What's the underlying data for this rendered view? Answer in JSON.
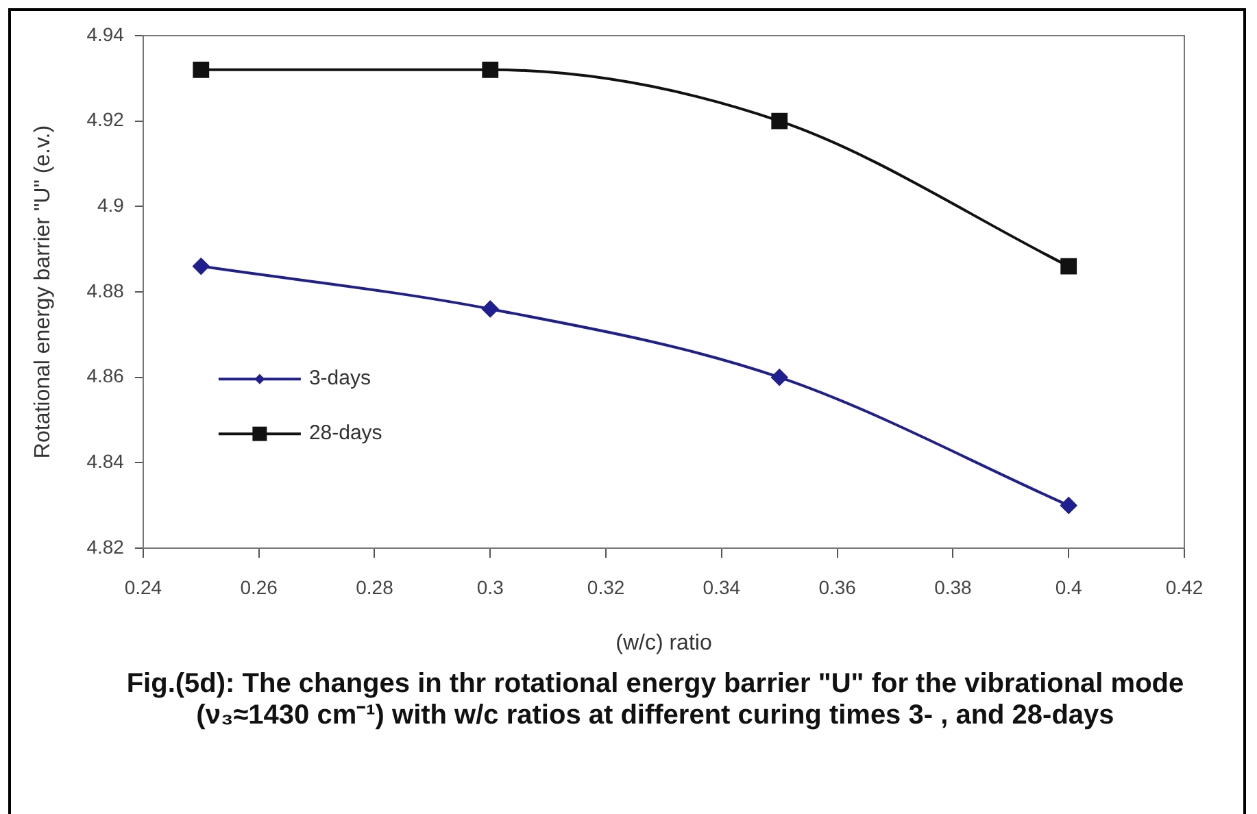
{
  "chart_data": {
    "type": "line",
    "xlabel": "(w/c) ratio",
    "ylabel": "Rotational energy barrier \"U\" (e.v.)",
    "x": [
      0.25,
      0.3,
      0.35,
      0.4
    ],
    "series": [
      {
        "name": "3-days",
        "color": "#1f1f8f",
        "marker": "diamond",
        "values": [
          4.886,
          4.876,
          4.86,
          4.83
        ]
      },
      {
        "name": "28-days",
        "color": "#111111",
        "marker": "square",
        "values": [
          4.932,
          4.932,
          4.92,
          4.886
        ]
      }
    ],
    "xlim": [
      0.24,
      0.42
    ],
    "xticks": [
      0.24,
      0.26,
      0.28,
      0.3,
      0.32,
      0.34,
      0.36,
      0.38,
      0.4,
      0.42
    ],
    "ylim": [
      4.82,
      4.94
    ],
    "yticks": [
      4.82,
      4.84,
      4.86,
      4.88,
      4.9,
      4.92,
      4.94
    ],
    "grid": false,
    "legend": "left",
    "annotations": [
      "Fig.(5d): The changes in thr rotational energy barrier \"U\" for the vibrational mode (ν₃≈1430 cm⁻¹) with w/c ratios at different curing times 3- , and 28-days"
    ]
  }
}
